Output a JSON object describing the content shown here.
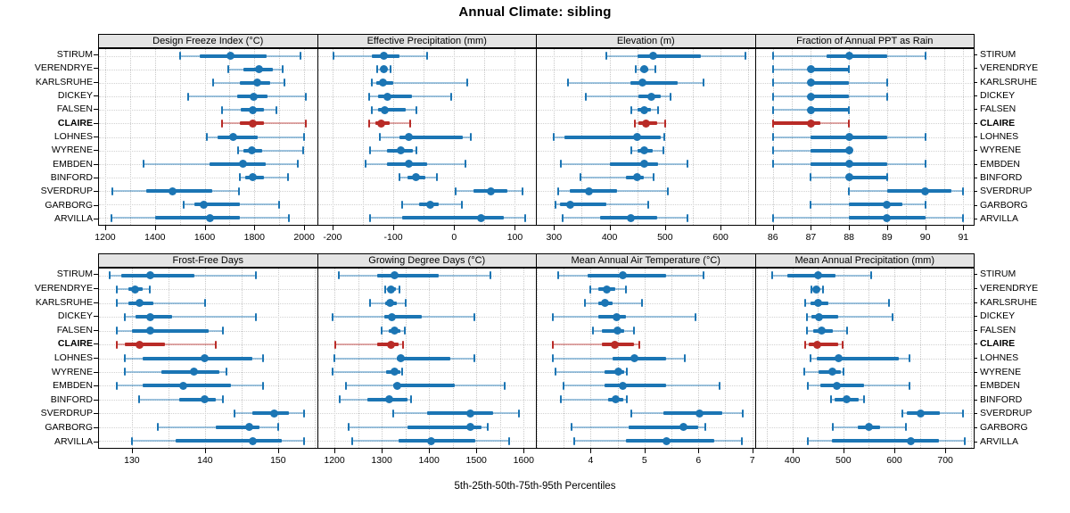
{
  "title": "Annual Climate: sibling",
  "caption": "5th-25th-50th-75th-95th Percentiles",
  "highlight_station": "CLAIRE",
  "colors": {
    "series_blue": "#1b75b4",
    "series_blue_light": "rgba(27,117,180,0.42)",
    "highlight_red": "#b92b27",
    "highlight_red_light": "rgba(185,43,39,0.40)",
    "header_bg": "#e4e4e4",
    "grid": "#c9c9c9",
    "border": "#000000"
  },
  "stations": [
    "STIRUM",
    "VERENDRYE",
    "KARLSRUHE",
    "DICKEY",
    "FALSEN",
    "CLAIRE",
    "LOHNES",
    "WYRENE",
    "EMBDEN",
    "BINFORD",
    "SVERDRUP",
    "GARBORG",
    "ARVILLA"
  ],
  "chart_data": {
    "type": "dot-whisker-trellis",
    "percentiles": [
      5,
      25,
      50,
      75,
      95
    ],
    "rows_are": "stations (same order as stations[])",
    "layout": "2 rows x 4 columns of panels; station labels repeated on both sides of each band",
    "panels": [
      {
        "title": "Design Freeze Index (°C)",
        "xlim": [
          1175,
          2048
        ],
        "ticks": [
          1200,
          1400,
          1600,
          1800,
          2000
        ],
        "grid_step": 100,
        "values": [
          [
            1500,
            1580,
            1705,
            1850,
            1985
          ],
          [
            1695,
            1755,
            1820,
            1875,
            1915
          ],
          [
            1633,
            1740,
            1812,
            1862,
            1920
          ],
          [
            1535,
            1730,
            1798,
            1852,
            2008
          ],
          [
            1670,
            1745,
            1795,
            1840,
            1888
          ],
          [
            1668,
            1740,
            1795,
            1838,
            2005
          ],
          [
            1610,
            1652,
            1715,
            1815,
            2000
          ],
          [
            1735,
            1757,
            1790,
            1830,
            1995
          ],
          [
            1355,
            1620,
            1755,
            1845,
            1975
          ],
          [
            1740,
            1762,
            1792,
            1840,
            1935
          ],
          [
            1230,
            1365,
            1470,
            1630,
            1737
          ],
          [
            1515,
            1560,
            1597,
            1740,
            1900
          ],
          [
            1225,
            1400,
            1620,
            1740,
            1940
          ]
        ]
      },
      {
        "title": "Effective Precipitation (mm)",
        "xlim": [
          -224,
          133
        ],
        "ticks": [
          -200,
          -100,
          0,
          100
        ],
        "grid_step": 50,
        "values": [
          [
            -198,
            -135,
            -115,
            -90,
            -45
          ],
          [
            -126,
            -120,
            -115,
            -110,
            -104
          ],
          [
            -136,
            -128,
            -117,
            -100,
            22
          ],
          [
            -140,
            -125,
            -110,
            -70,
            -5
          ],
          [
            -136,
            -125,
            -114,
            -80,
            -62
          ],
          [
            -140,
            -130,
            -120,
            -106,
            -72
          ],
          [
            -122,
            -90,
            -74,
            14,
            28
          ],
          [
            -138,
            -110,
            -88,
            -68,
            -62
          ],
          [
            -145,
            -110,
            -75,
            -45,
            18
          ],
          [
            -90,
            -76,
            -62,
            -48,
            -28
          ],
          [
            3,
            32,
            60,
            88,
            113
          ],
          [
            -86,
            -57,
            -39,
            -25,
            13
          ],
          [
            -138,
            -86,
            45,
            82,
            117
          ]
        ]
      },
      {
        "title": "Elevation (m)",
        "xlim": [
          269,
          660
        ],
        "ticks": [
          300,
          400,
          500,
          600
        ],
        "grid_step": 50,
        "values": [
          [
            395,
            450,
            478,
            565,
            645
          ],
          [
            448,
            455,
            462,
            470,
            482
          ],
          [
            325,
            437,
            460,
            522,
            570
          ],
          [
            358,
            452,
            475,
            492,
            510
          ],
          [
            440,
            450,
            462,
            475,
            487
          ],
          [
            445,
            452,
            465,
            485,
            500
          ],
          [
            300,
            318,
            450,
            492,
            498
          ],
          [
            440,
            450,
            462,
            478,
            497
          ],
          [
            312,
            400,
            463,
            488,
            540
          ],
          [
            348,
            430,
            450,
            462,
            480
          ],
          [
            308,
            328,
            363,
            413,
            505
          ],
          [
            303,
            310,
            330,
            395,
            470
          ],
          [
            315,
            383,
            438,
            485,
            540
          ]
        ]
      },
      {
        "title": "Fraction of Annual PPT as Rain",
        "xlim": [
          85.55,
          91.25
        ],
        "ticks": [
          86,
          87,
          88,
          89,
          90,
          91
        ],
        "grid_step": 0.5,
        "values": [
          [
            86,
            87.4,
            88,
            89,
            90
          ],
          [
            86,
            87,
            87,
            88,
            88
          ],
          [
            86,
            87,
            87,
            88,
            89
          ],
          [
            86,
            87,
            87,
            88,
            89
          ],
          [
            86,
            87,
            87,
            88,
            88
          ],
          [
            86,
            86,
            87,
            87.25,
            88
          ],
          [
            86,
            87,
            88,
            89,
            90
          ],
          [
            86,
            87,
            88,
            88,
            88
          ],
          [
            86,
            87,
            88,
            89,
            90
          ],
          [
            87,
            88,
            88,
            89,
            89
          ],
          [
            88,
            89,
            90,
            90.7,
            91
          ],
          [
            87,
            88,
            89,
            89.4,
            90
          ],
          [
            86,
            88,
            89,
            90,
            91
          ]
        ]
      },
      {
        "title": "Frost-Free Days",
        "xlim": [
          125.5,
          155.2
        ],
        "ticks": [
          130,
          140,
          150
        ],
        "grid_step": 5,
        "values": [
          [
            127,
            128.5,
            132.5,
            138.5,
            147
          ],
          [
            128,
            129.5,
            130.5,
            131.5,
            132.5
          ],
          [
            128,
            129.5,
            131,
            133,
            140
          ],
          [
            129,
            130.5,
            132.5,
            135.5,
            147
          ],
          [
            128,
            130,
            132.5,
            140.5,
            142.5
          ],
          [
            128,
            129,
            131,
            134.5,
            141.5
          ],
          [
            129,
            131.5,
            140,
            146.5,
            148
          ],
          [
            129,
            134,
            138.5,
            142,
            143
          ],
          [
            128,
            131.5,
            137,
            143.5,
            148
          ],
          [
            131,
            136.5,
            140,
            141.5,
            142.5
          ],
          [
            144,
            146.5,
            149.5,
            151.5,
            153.5
          ],
          [
            133.5,
            141.5,
            146,
            147.5,
            150
          ],
          [
            130,
            136,
            146.5,
            150.5,
            153.5
          ]
        ]
      },
      {
        "title": "Growing Degree Days (°C)",
        "xlim": [
          1165,
          1624
        ],
        "ticks": [
          1200,
          1300,
          1400,
          1500,
          1600
        ],
        "grid_step": 50,
        "values": [
          [
            1210,
            1290,
            1328,
            1420,
            1530
          ],
          [
            1308,
            1315,
            1320,
            1330,
            1338
          ],
          [
            1275,
            1308,
            1318,
            1332,
            1350
          ],
          [
            1197,
            1305,
            1322,
            1385,
            1495
          ],
          [
            1300,
            1315,
            1328,
            1340,
            1348
          ],
          [
            1202,
            1290,
            1320,
            1335,
            1345
          ],
          [
            1200,
            1332,
            1340,
            1445,
            1495
          ],
          [
            1197,
            1310,
            1328,
            1340,
            1343
          ],
          [
            1225,
            1325,
            1333,
            1455,
            1560
          ],
          [
            1212,
            1270,
            1315,
            1355,
            1362
          ],
          [
            1325,
            1395,
            1488,
            1535,
            1590
          ],
          [
            1230,
            1355,
            1488,
            1510,
            1525
          ],
          [
            1238,
            1335,
            1405,
            1498,
            1570
          ]
        ]
      },
      {
        "title": "Mean Annual Air Temperature (°C)",
        "xlim": [
          3.0,
          7.03
        ],
        "ticks": [
          4,
          5,
          6,
          7
        ],
        "grid_step": 0.5,
        "values": [
          [
            3.4,
            3.95,
            4.6,
            5.4,
            6.1
          ],
          [
            4.0,
            4.15,
            4.3,
            4.45,
            4.65
          ],
          [
            3.9,
            4.15,
            4.27,
            4.4,
            4.95
          ],
          [
            3.3,
            4.15,
            4.48,
            4.65,
            5.95
          ],
          [
            4.05,
            4.2,
            4.5,
            4.62,
            4.8
          ],
          [
            3.3,
            4.2,
            4.45,
            4.8,
            4.9
          ],
          [
            3.3,
            4.4,
            4.82,
            5.4,
            5.75
          ],
          [
            3.35,
            4.25,
            4.52,
            4.62,
            4.67
          ],
          [
            3.5,
            4.25,
            4.6,
            5.4,
            6.4
          ],
          [
            3.45,
            4.33,
            4.47,
            4.6,
            4.67
          ],
          [
            4.75,
            5.35,
            6.02,
            6.45,
            6.82
          ],
          [
            3.65,
            4.7,
            5.72,
            6.0,
            6.12
          ],
          [
            3.7,
            4.65,
            5.4,
            6.3,
            6.8
          ]
        ]
      },
      {
        "title": "Mean Annual Precipitation (mm)",
        "xlim": [
          328,
          754
        ],
        "ticks": [
          400,
          500,
          600,
          700
        ],
        "grid_step": 50,
        "values": [
          [
            360,
            390,
            450,
            485,
            555
          ],
          [
            438,
            443,
            447,
            452,
            460
          ],
          [
            425,
            435,
            450,
            470,
            590
          ],
          [
            428,
            437,
            452,
            490,
            597
          ],
          [
            428,
            440,
            458,
            480,
            508
          ],
          [
            425,
            432,
            448,
            490,
            498
          ],
          [
            435,
            448,
            490,
            608,
            630
          ],
          [
            423,
            452,
            478,
            495,
            500
          ],
          [
            430,
            455,
            488,
            540,
            630
          ],
          [
            475,
            482,
            507,
            530,
            540
          ],
          [
            615,
            625,
            652,
            690,
            735
          ],
          [
            480,
            528,
            550,
            572,
            622
          ],
          [
            430,
            477,
            632,
            688,
            738
          ]
        ]
      }
    ]
  }
}
